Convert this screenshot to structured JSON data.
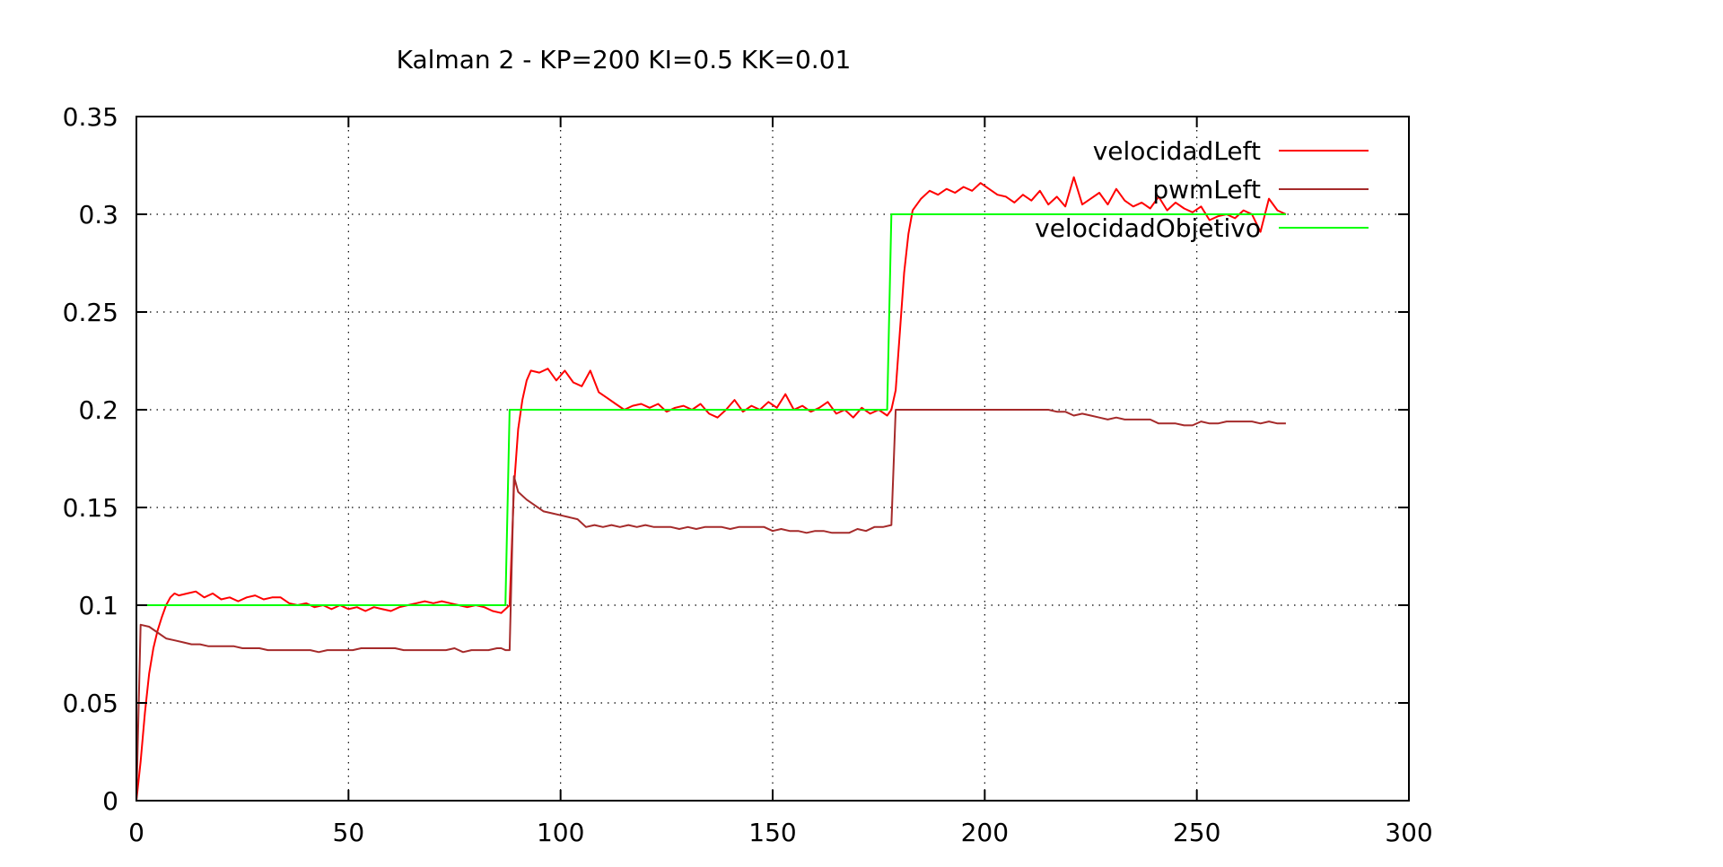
{
  "chart_data": {
    "type": "line",
    "title": "Kalman 2 - KP=200 KI=0.5 KK=0.01",
    "xlabel": "",
    "ylabel": "",
    "xlim": [
      0,
      300
    ],
    "ylim": [
      0,
      0.35
    ],
    "xticks": [
      0,
      50,
      100,
      150,
      200,
      250,
      300
    ],
    "xtick_labels": [
      "0",
      "50",
      "100",
      "150",
      "200",
      "250",
      "300"
    ],
    "yticks": [
      0,
      0.05,
      0.1,
      0.15,
      0.2,
      0.25,
      0.3,
      0.35
    ],
    "ytick_labels": [
      "0",
      "0.05",
      "0.1",
      "0.15",
      "0.2",
      "0.25",
      "0.3",
      "0.35"
    ],
    "grid": true,
    "legend_position": "top-right",
    "series": [
      {
        "name": "velocidadLeft",
        "color": "#ff0000",
        "points": [
          [
            0,
            0
          ],
          [
            1,
            0.02
          ],
          [
            2,
            0.045
          ],
          [
            3,
            0.065
          ],
          [
            4,
            0.078
          ],
          [
            5,
            0.087
          ],
          [
            6,
            0.094
          ],
          [
            7,
            0.1
          ],
          [
            8,
            0.104
          ],
          [
            9,
            0.106
          ],
          [
            10,
            0.105
          ],
          [
            12,
            0.106
          ],
          [
            14,
            0.107
          ],
          [
            16,
            0.104
          ],
          [
            18,
            0.106
          ],
          [
            20,
            0.103
          ],
          [
            22,
            0.104
          ],
          [
            24,
            0.102
          ],
          [
            26,
            0.104
          ],
          [
            28,
            0.105
          ],
          [
            30,
            0.103
          ],
          [
            32,
            0.104
          ],
          [
            34,
            0.104
          ],
          [
            36,
            0.101
          ],
          [
            38,
            0.1
          ],
          [
            40,
            0.101
          ],
          [
            42,
            0.099
          ],
          [
            44,
            0.1
          ],
          [
            46,
            0.098
          ],
          [
            48,
            0.1
          ],
          [
            50,
            0.098
          ],
          [
            52,
            0.099
          ],
          [
            54,
            0.097
          ],
          [
            56,
            0.099
          ],
          [
            58,
            0.098
          ],
          [
            60,
            0.097
          ],
          [
            62,
            0.099
          ],
          [
            64,
            0.1
          ],
          [
            66,
            0.101
          ],
          [
            68,
            0.102
          ],
          [
            70,
            0.101
          ],
          [
            72,
            0.102
          ],
          [
            74,
            0.101
          ],
          [
            76,
            0.1
          ],
          [
            78,
            0.099
          ],
          [
            80,
            0.1
          ],
          [
            82,
            0.099
          ],
          [
            84,
            0.097
          ],
          [
            86,
            0.096
          ],
          [
            87,
            0.098
          ],
          [
            88,
            0.1
          ],
          [
            89,
            0.16
          ],
          [
            90,
            0.19
          ],
          [
            91,
            0.205
          ],
          [
            92,
            0.215
          ],
          [
            93,
            0.22
          ],
          [
            95,
            0.219
          ],
          [
            97,
            0.221
          ],
          [
            99,
            0.215
          ],
          [
            101,
            0.22
          ],
          [
            103,
            0.214
          ],
          [
            105,
            0.212
          ],
          [
            107,
            0.22
          ],
          [
            109,
            0.209
          ],
          [
            111,
            0.206
          ],
          [
            113,
            0.203
          ],
          [
            115,
            0.2
          ],
          [
            117,
            0.202
          ],
          [
            119,
            0.203
          ],
          [
            121,
            0.201
          ],
          [
            123,
            0.203
          ],
          [
            125,
            0.199
          ],
          [
            127,
            0.201
          ],
          [
            129,
            0.202
          ],
          [
            131,
            0.2
          ],
          [
            133,
            0.203
          ],
          [
            135,
            0.198
          ],
          [
            137,
            0.196
          ],
          [
            139,
            0.2
          ],
          [
            141,
            0.205
          ],
          [
            143,
            0.199
          ],
          [
            145,
            0.202
          ],
          [
            147,
            0.2
          ],
          [
            149,
            0.204
          ],
          [
            151,
            0.201
          ],
          [
            153,
            0.208
          ],
          [
            155,
            0.2
          ],
          [
            157,
            0.202
          ],
          [
            159,
            0.199
          ],
          [
            161,
            0.201
          ],
          [
            163,
            0.204
          ],
          [
            165,
            0.198
          ],
          [
            167,
            0.2
          ],
          [
            169,
            0.196
          ],
          [
            171,
            0.201
          ],
          [
            173,
            0.198
          ],
          [
            175,
            0.2
          ],
          [
            177,
            0.197
          ],
          [
            178,
            0.2
          ],
          [
            179,
            0.21
          ],
          [
            180,
            0.24
          ],
          [
            181,
            0.27
          ],
          [
            182,
            0.29
          ],
          [
            183,
            0.302
          ],
          [
            185,
            0.308
          ],
          [
            187,
            0.312
          ],
          [
            189,
            0.31
          ],
          [
            191,
            0.313
          ],
          [
            193,
            0.311
          ],
          [
            195,
            0.314
          ],
          [
            197,
            0.312
          ],
          [
            199,
            0.316
          ],
          [
            201,
            0.313
          ],
          [
            203,
            0.31
          ],
          [
            205,
            0.309
          ],
          [
            207,
            0.306
          ],
          [
            209,
            0.31
          ],
          [
            211,
            0.307
          ],
          [
            213,
            0.312
          ],
          [
            215,
            0.305
          ],
          [
            217,
            0.309
          ],
          [
            219,
            0.304
          ],
          [
            221,
            0.319
          ],
          [
            223,
            0.305
          ],
          [
            225,
            0.308
          ],
          [
            227,
            0.311
          ],
          [
            229,
            0.305
          ],
          [
            231,
            0.313
          ],
          [
            233,
            0.307
          ],
          [
            235,
            0.304
          ],
          [
            237,
            0.306
          ],
          [
            239,
            0.303
          ],
          [
            241,
            0.309
          ],
          [
            243,
            0.302
          ],
          [
            245,
            0.306
          ],
          [
            247,
            0.303
          ],
          [
            249,
            0.301
          ],
          [
            251,
            0.304
          ],
          [
            253,
            0.297
          ],
          [
            255,
            0.299
          ],
          [
            257,
            0.3
          ],
          [
            259,
            0.298
          ],
          [
            261,
            0.302
          ],
          [
            263,
            0.3
          ],
          [
            265,
            0.291
          ],
          [
            267,
            0.308
          ],
          [
            269,
            0.302
          ],
          [
            271,
            0.3
          ]
        ]
      },
      {
        "name": "pwmLeft",
        "color": "#a52a2a",
        "points": [
          [
            0,
            0
          ],
          [
            1,
            0.09
          ],
          [
            3,
            0.089
          ],
          [
            5,
            0.086
          ],
          [
            7,
            0.083
          ],
          [
            9,
            0.082
          ],
          [
            11,
            0.081
          ],
          [
            13,
            0.08
          ],
          [
            15,
            0.08
          ],
          [
            17,
            0.079
          ],
          [
            19,
            0.079
          ],
          [
            21,
            0.079
          ],
          [
            23,
            0.079
          ],
          [
            25,
            0.078
          ],
          [
            27,
            0.078
          ],
          [
            29,
            0.078
          ],
          [
            31,
            0.077
          ],
          [
            33,
            0.077
          ],
          [
            35,
            0.077
          ],
          [
            37,
            0.077
          ],
          [
            39,
            0.077
          ],
          [
            41,
            0.077
          ],
          [
            43,
            0.076
          ],
          [
            45,
            0.077
          ],
          [
            47,
            0.077
          ],
          [
            49,
            0.077
          ],
          [
            51,
            0.077
          ],
          [
            53,
            0.078
          ],
          [
            55,
            0.078
          ],
          [
            57,
            0.078
          ],
          [
            59,
            0.078
          ],
          [
            61,
            0.078
          ],
          [
            63,
            0.077
          ],
          [
            65,
            0.077
          ],
          [
            67,
            0.077
          ],
          [
            69,
            0.077
          ],
          [
            71,
            0.077
          ],
          [
            73,
            0.077
          ],
          [
            75,
            0.078
          ],
          [
            77,
            0.076
          ],
          [
            79,
            0.077
          ],
          [
            81,
            0.077
          ],
          [
            83,
            0.077
          ],
          [
            85,
            0.078
          ],
          [
            86,
            0.078
          ],
          [
            87,
            0.077
          ],
          [
            88,
            0.077
          ],
          [
            89,
            0.166
          ],
          [
            90,
            0.158
          ],
          [
            92,
            0.154
          ],
          [
            94,
            0.151
          ],
          [
            96,
            0.148
          ],
          [
            98,
            0.147
          ],
          [
            100,
            0.146
          ],
          [
            102,
            0.145
          ],
          [
            104,
            0.144
          ],
          [
            106,
            0.14
          ],
          [
            108,
            0.141
          ],
          [
            110,
            0.14
          ],
          [
            112,
            0.141
          ],
          [
            114,
            0.14
          ],
          [
            116,
            0.141
          ],
          [
            118,
            0.14
          ],
          [
            120,
            0.141
          ],
          [
            122,
            0.14
          ],
          [
            124,
            0.14
          ],
          [
            126,
            0.14
          ],
          [
            128,
            0.139
          ],
          [
            130,
            0.14
          ],
          [
            132,
            0.139
          ],
          [
            134,
            0.14
          ],
          [
            136,
            0.14
          ],
          [
            138,
            0.14
          ],
          [
            140,
            0.139
          ],
          [
            142,
            0.14
          ],
          [
            144,
            0.14
          ],
          [
            146,
            0.14
          ],
          [
            148,
            0.14
          ],
          [
            150,
            0.138
          ],
          [
            152,
            0.139
          ],
          [
            154,
            0.138
          ],
          [
            156,
            0.138
          ],
          [
            158,
            0.137
          ],
          [
            160,
            0.138
          ],
          [
            162,
            0.138
          ],
          [
            164,
            0.137
          ],
          [
            166,
            0.137
          ],
          [
            168,
            0.137
          ],
          [
            170,
            0.139
          ],
          [
            172,
            0.138
          ],
          [
            174,
            0.14
          ],
          [
            176,
            0.14
          ],
          [
            178,
            0.141
          ],
          [
            179,
            0.2
          ],
          [
            181,
            0.2
          ],
          [
            183,
            0.2
          ],
          [
            185,
            0.2
          ],
          [
            190,
            0.2
          ],
          [
            195,
            0.2
          ],
          [
            200,
            0.2
          ],
          [
            205,
            0.2
          ],
          [
            210,
            0.2
          ],
          [
            215,
            0.2
          ],
          [
            217,
            0.199
          ],
          [
            219,
            0.199
          ],
          [
            221,
            0.197
          ],
          [
            223,
            0.198
          ],
          [
            225,
            0.197
          ],
          [
            227,
            0.196
          ],
          [
            229,
            0.195
          ],
          [
            231,
            0.196
          ],
          [
            233,
            0.195
          ],
          [
            235,
            0.195
          ],
          [
            237,
            0.195
          ],
          [
            239,
            0.195
          ],
          [
            241,
            0.193
          ],
          [
            243,
            0.193
          ],
          [
            245,
            0.193
          ],
          [
            247,
            0.192
          ],
          [
            249,
            0.192
          ],
          [
            251,
            0.194
          ],
          [
            253,
            0.193
          ],
          [
            255,
            0.193
          ],
          [
            257,
            0.194
          ],
          [
            259,
            0.194
          ],
          [
            261,
            0.194
          ],
          [
            263,
            0.194
          ],
          [
            265,
            0.193
          ],
          [
            267,
            0.194
          ],
          [
            269,
            0.193
          ],
          [
            271,
            0.193
          ]
        ]
      },
      {
        "name": "velocidadObjetivo",
        "color": "#00ff00",
        "points": [
          [
            0,
            0.1
          ],
          [
            87,
            0.1
          ],
          [
            88,
            0.2
          ],
          [
            177,
            0.2
          ],
          [
            178,
            0.3
          ],
          [
            271,
            0.3
          ]
        ]
      }
    ]
  }
}
